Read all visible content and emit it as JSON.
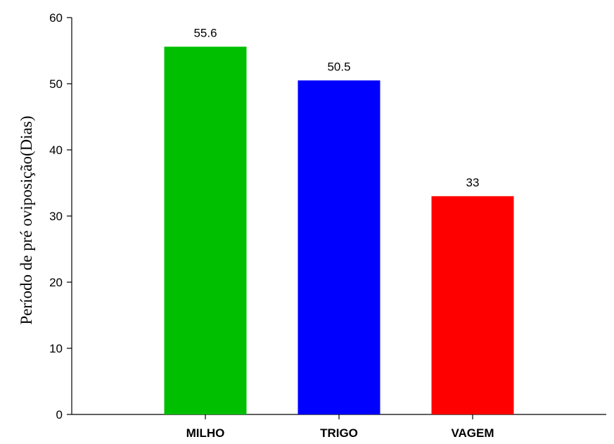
{
  "chart_data": {
    "type": "bar",
    "categories": [
      "MILHO",
      "TRIGO",
      "VAGEM"
    ],
    "values": [
      55.6,
      50.5,
      33
    ],
    "data_labels": [
      "55.6",
      "50.5",
      "33"
    ],
    "colors": [
      "#00bf00",
      "#0000ff",
      "#ff0000"
    ],
    "ylabel": "Período de pré oviposição(Dias)",
    "xlabel": "",
    "ylim": [
      0,
      60
    ],
    "yticks": [
      "0",
      "10",
      "20",
      "30",
      "40",
      "50",
      "60"
    ],
    "grid": false
  }
}
